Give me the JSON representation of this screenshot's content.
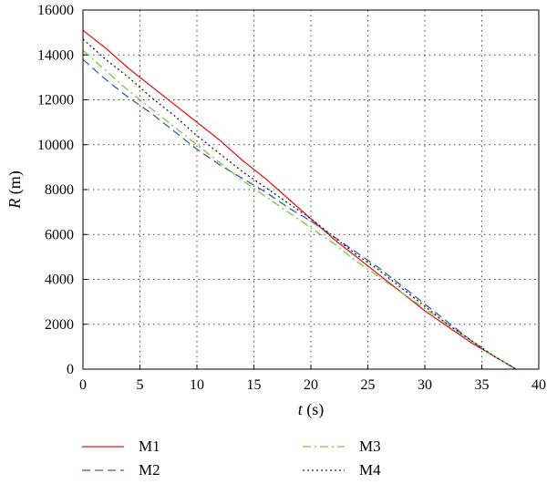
{
  "chart_data": {
    "type": "line",
    "title": "",
    "xlabel": {
      "var": "t",
      "unit": " (s)"
    },
    "ylabel": {
      "var": "R",
      "unit": " (m)"
    },
    "xlim": [
      0,
      40
    ],
    "ylim": [
      0,
      16000
    ],
    "xticks": [
      0,
      5,
      10,
      15,
      20,
      25,
      30,
      35,
      40
    ],
    "yticks": [
      0,
      2000,
      4000,
      6000,
      8000,
      10000,
      12000,
      14000,
      16000
    ],
    "grid": true,
    "legend_position": "bottom",
    "series": [
      {
        "name": "M1",
        "color": "#e41a1c",
        "dash": "solid",
        "x": [
          0,
          2,
          4,
          6,
          8,
          10,
          12,
          14,
          16,
          18,
          20,
          22,
          24,
          26,
          28,
          30,
          32,
          34,
          36,
          38
        ],
        "y": [
          15100,
          14300,
          13400,
          12600,
          11800,
          11000,
          10200,
          9300,
          8500,
          7600,
          6700,
          5800,
          5000,
          4200,
          3400,
          2600,
          1900,
          1200,
          600,
          0
        ]
      },
      {
        "name": "M2",
        "color": "#3a5fad",
        "dash": "dashed",
        "x": [
          0,
          2,
          4,
          6,
          8,
          10,
          12,
          14,
          16,
          18,
          20,
          22,
          24,
          26,
          28,
          30,
          32,
          34,
          36,
          38
        ],
        "y": [
          13800,
          12900,
          12100,
          11400,
          10600,
          9800,
          9100,
          8500,
          7900,
          7200,
          6600,
          5900,
          5200,
          4500,
          3700,
          2900,
          2100,
          1300,
          600,
          0
        ]
      },
      {
        "name": "M3",
        "color": "#7cc447",
        "dash": "dashdot",
        "x": [
          0,
          2,
          4,
          6,
          8,
          10,
          12,
          14,
          16,
          18,
          20,
          22,
          24,
          26,
          28,
          30,
          32,
          34,
          36,
          38
        ],
        "y": [
          14200,
          13300,
          12400,
          11600,
          10800,
          10000,
          9200,
          8400,
          7700,
          7000,
          6300,
          5600,
          4800,
          4100,
          3400,
          2700,
          2000,
          1300,
          600,
          0
        ]
      },
      {
        "name": "M4",
        "color": "#222222",
        "dash": "dotted",
        "x": [
          0,
          2,
          4,
          6,
          8,
          10,
          12,
          14,
          16,
          18,
          20,
          22,
          24,
          26,
          28,
          30,
          32,
          34,
          36,
          38
        ],
        "y": [
          14700,
          13800,
          13000,
          12100,
          11300,
          10400,
          9600,
          8800,
          8100,
          7400,
          6700,
          5900,
          5100,
          4400,
          3600,
          2800,
          2000,
          1300,
          600,
          0
        ]
      }
    ]
  }
}
